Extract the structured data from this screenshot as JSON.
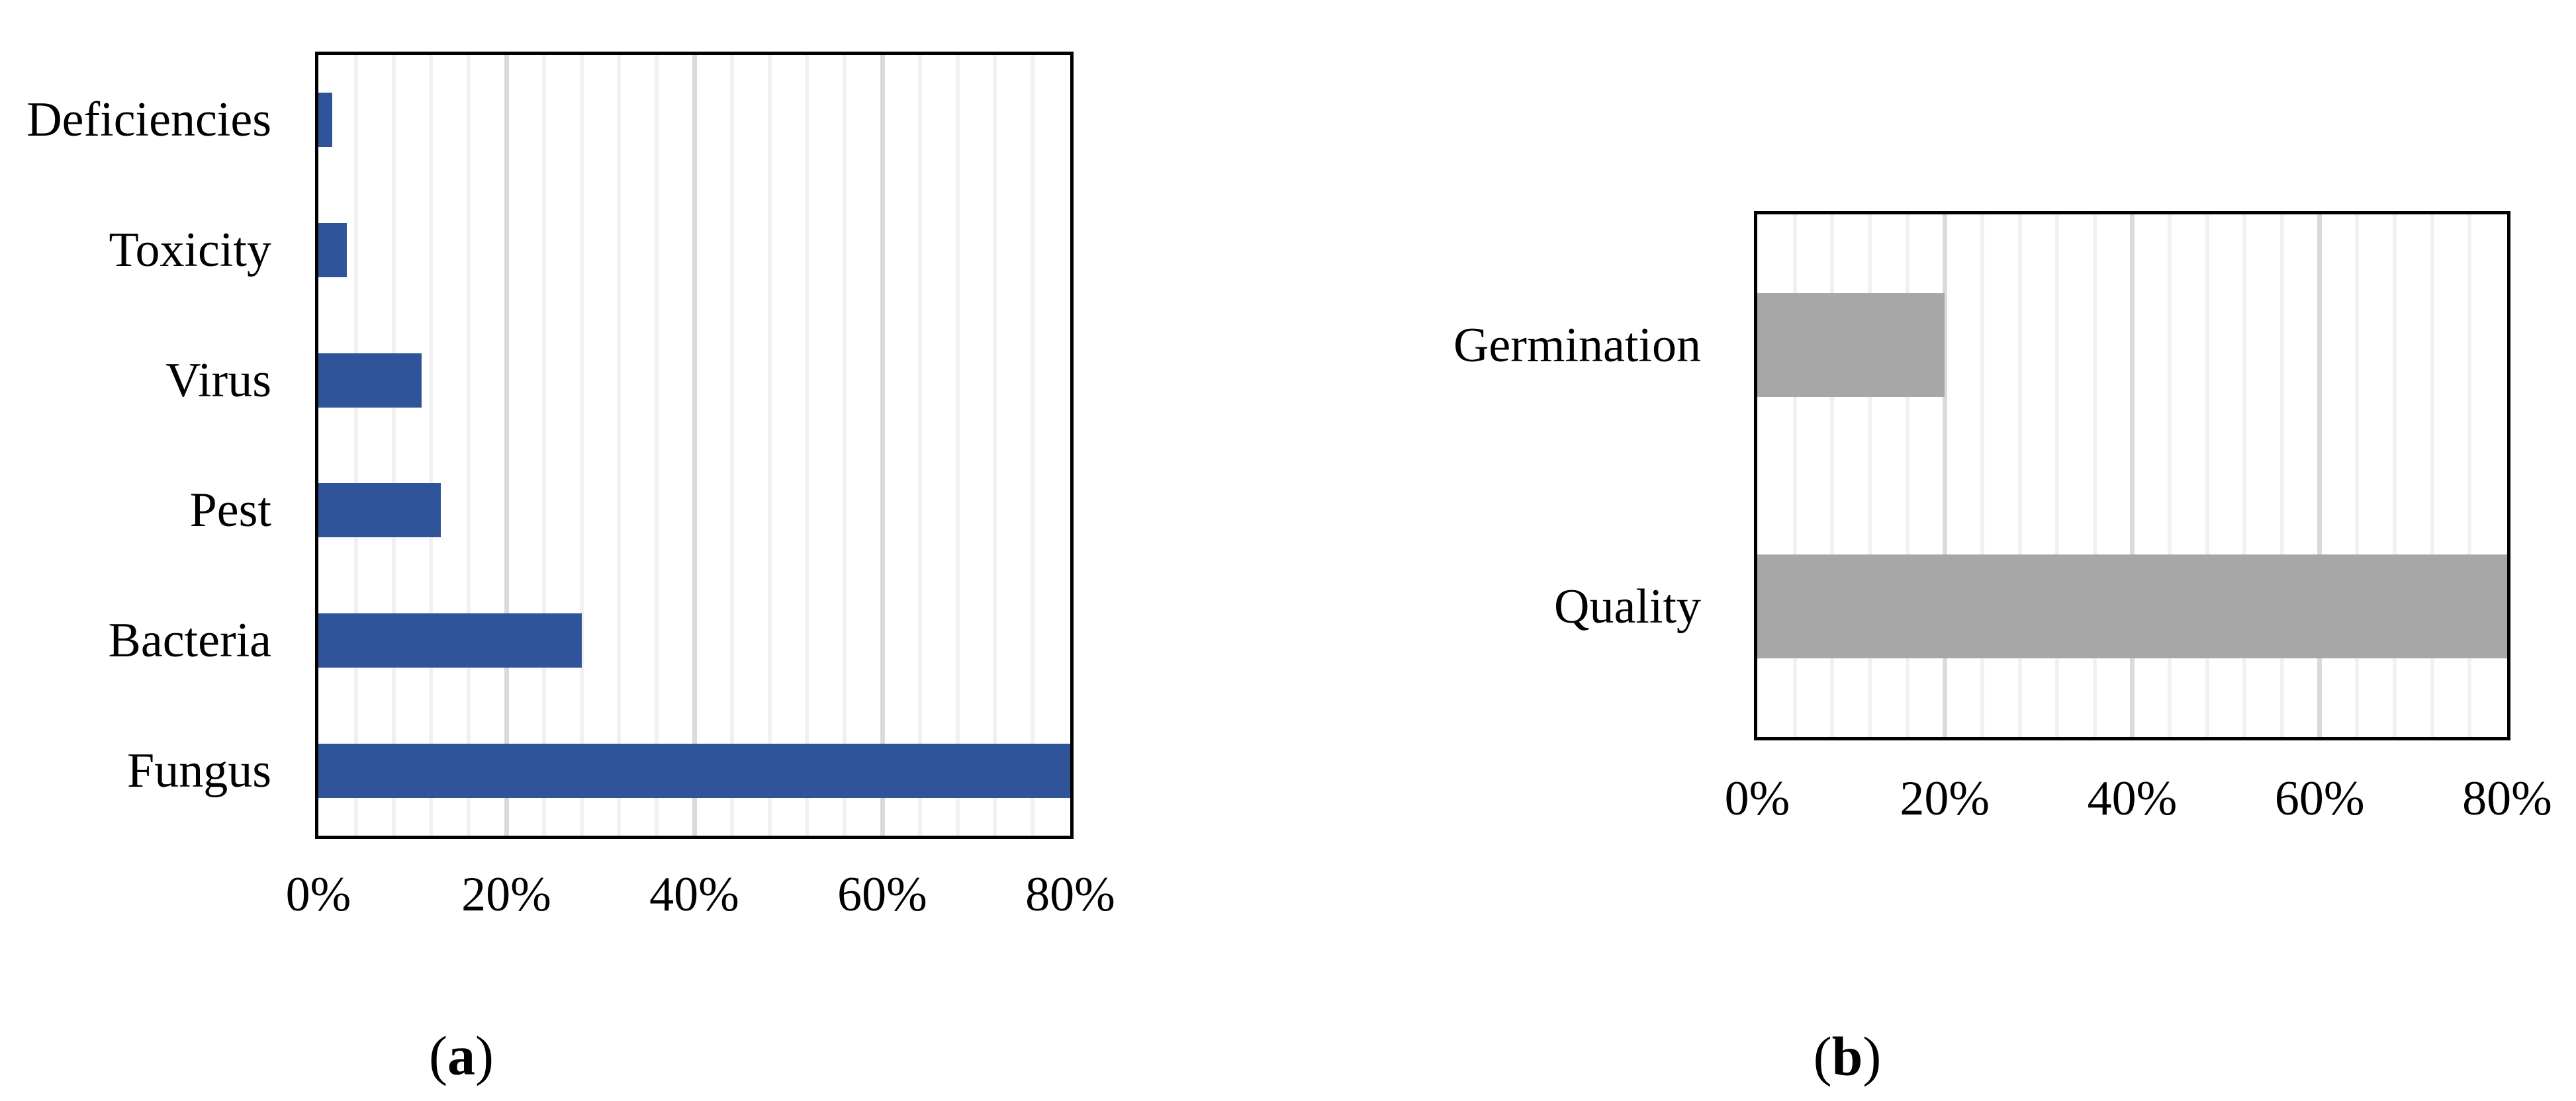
{
  "figure": {
    "background_color": "#FFFFFF",
    "text_color": "#000000",
    "border_color": "#000000"
  },
  "panels": {
    "a": {
      "label_open": "(",
      "label_letter": "a",
      "label_close": ")"
    },
    "b": {
      "label_open": "(",
      "label_letter": "b",
      "label_close": ")"
    }
  },
  "chart_data": [
    {
      "id": "a",
      "type": "bar",
      "orientation": "horizontal",
      "title": "",
      "categories": [
        "Deficiencies",
        "Toxicity",
        "Virus",
        "Pest",
        "Bacteria",
        "Fungus"
      ],
      "values": [
        1.5,
        3,
        11,
        13,
        28,
        80
      ],
      "unit": "%",
      "bar_color": "#30549A",
      "xlim": [
        0,
        80
      ],
      "x_tick_values": [
        0,
        20,
        40,
        60,
        80
      ],
      "x_tick_labels": [
        "0%",
        "20%",
        "40%",
        "60%",
        "80%"
      ],
      "grid": true,
      "minor_grid_step": 4,
      "major_grid_step": 20,
      "minor_grid_color": "#F1F1F1",
      "major_grid_color": "#DADADA",
      "plot_border_color": "#000000",
      "legend": "none"
    },
    {
      "id": "b",
      "type": "bar",
      "orientation": "horizontal",
      "title": "",
      "categories": [
        "Germination",
        "Quality"
      ],
      "values": [
        20,
        80
      ],
      "unit": "%",
      "bar_color": "#A7A7A7",
      "xlim": [
        0,
        80
      ],
      "x_tick_values": [
        0,
        20,
        40,
        60,
        80
      ],
      "x_tick_labels": [
        "0%",
        "20%",
        "40%",
        "60%",
        "80%"
      ],
      "grid": true,
      "minor_grid_step": 4,
      "major_grid_step": 20,
      "minor_grid_color": "#F1F1F1",
      "major_grid_color": "#DADADA",
      "plot_border_color": "#000000",
      "legend": "none"
    }
  ]
}
